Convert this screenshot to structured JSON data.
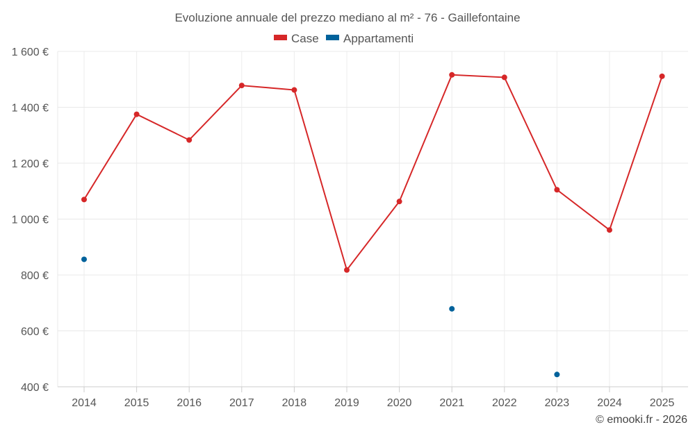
{
  "chart_data": {
    "type": "line",
    "title": "Evoluzione annuale del prezzo mediano al m² - 76 - Gaillefontaine",
    "categories": [
      "2014",
      "2015",
      "2016",
      "2017",
      "2018",
      "2019",
      "2020",
      "2021",
      "2022",
      "2023",
      "2024",
      "2025"
    ],
    "y_ticks": [
      "400 €",
      "600 €",
      "800 €",
      "1 000 €",
      "1 200 €",
      "1 400 €",
      "1 600 €"
    ],
    "ylim": [
      400,
      1600
    ],
    "grid": true,
    "legend_position": "top-center",
    "series": [
      {
        "name": "Case",
        "color": "#d62728",
        "values": [
          1070,
          1375,
          1283,
          1478,
          1462,
          818,
          1063,
          1516,
          1507,
          1105,
          961,
          1511
        ]
      },
      {
        "name": "Appartamenti",
        "color": "#00629b",
        "values": [
          856,
          null,
          null,
          null,
          null,
          null,
          null,
          679,
          null,
          444,
          null,
          null
        ]
      }
    ]
  },
  "credit": "© emooki.fr - 2026"
}
